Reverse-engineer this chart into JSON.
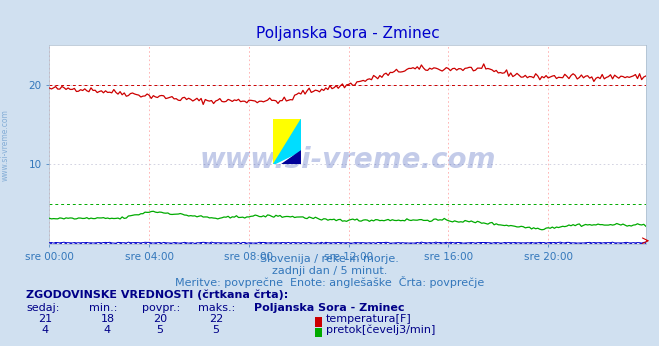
{
  "title": "Poljanska Sora - Zminec",
  "title_color": "#0000cc",
  "bg_color": "#d0e0f0",
  "plot_bg_color": "#ffffff",
  "grid_v_color": "#ffaaaa",
  "grid_h_color": "#ccccdd",
  "x_labels": [
    "sre 00:00",
    "sre 04:00",
    "sre 08:00",
    "sre 12:00",
    "sre 16:00",
    "sre 20:00"
  ],
  "x_ticks_norm": [
    0,
    48,
    96,
    144,
    192,
    240
  ],
  "x_max": 287,
  "y_min": 0,
  "y_max": 25,
  "y_ticks": [
    10,
    20
  ],
  "watermark": "www.si-vreme.com",
  "side_text": "www.si-vreme.com",
  "subtitle1": "Slovenija / reke in morje.",
  "subtitle2": "zadnji dan / 5 minut.",
  "subtitle3": "Meritve: povprečne  Enote: anglešaške  Črta: povprečje",
  "legend_title": "ZGODOVINSKE VREDNOSTI (črtkana črta):",
  "legend_headers": [
    "sedaj:",
    "min.:",
    "povpr.:",
    "maks.:",
    "Poljanska Sora - Zminec"
  ],
  "legend_row1": [
    "21",
    "18",
    "20",
    "22",
    "temperatura[F]"
  ],
  "legend_row2": [
    "4",
    "4",
    "5",
    "5",
    "pretok[čevelj3/min]"
  ],
  "temp_color": "#cc0000",
  "flow_color": "#00aa00",
  "height_color": "#0000cc",
  "avg_temp": 20.0,
  "avg_flow": 5.0,
  "avg_height": 0.15
}
